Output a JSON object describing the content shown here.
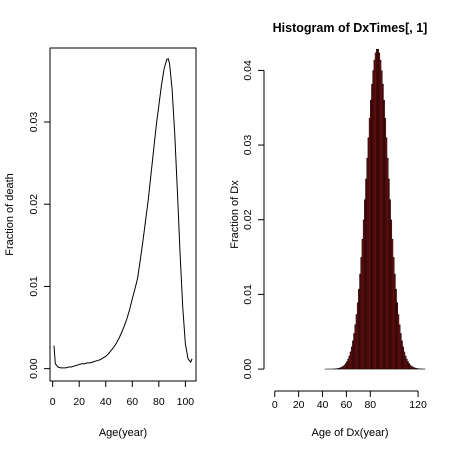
{
  "chart_data": [
    {
      "type": "line",
      "title": "",
      "xlabel": "Age(year)",
      "ylabel": "Fraction of death",
      "xlim": [
        -2,
        108
      ],
      "ylim": [
        -0.0015,
        0.039
      ],
      "xticks": [
        0,
        20,
        40,
        60,
        80,
        100
      ],
      "yticks": [
        0.0,
        0.01,
        0.02,
        0.03
      ],
      "ytick_labels": [
        "0.00",
        "0.01",
        "0.02",
        "0.03"
      ],
      "grid": false,
      "series": [
        {
          "color": "#000000",
          "x": [
            1,
            2,
            4,
            6,
            8,
            10,
            12,
            14,
            16,
            18,
            20,
            22,
            24,
            26,
            28,
            30,
            32,
            34,
            36,
            38,
            40,
            42,
            44,
            46,
            48,
            50,
            52,
            54,
            56,
            58,
            60,
            62,
            64,
            66,
            68,
            70,
            72,
            74,
            76,
            78,
            80,
            82,
            84,
            86,
            87,
            88,
            90,
            92,
            94,
            96,
            98,
            100,
            102,
            104,
            105
          ],
          "y": [
            0.0028,
            0.0006,
            0.0002,
            0.0001,
            0.0001,
            0.0001,
            0.0002,
            0.0002,
            0.0003,
            0.0004,
            0.0005,
            0.0006,
            0.0006,
            0.0007,
            0.0007,
            0.0008,
            0.0009,
            0.001,
            0.0011,
            0.0013,
            0.0015,
            0.0018,
            0.0022,
            0.0026,
            0.0031,
            0.0037,
            0.0044,
            0.0052,
            0.0061,
            0.0072,
            0.0085,
            0.0097,
            0.011,
            0.0132,
            0.0155,
            0.018,
            0.0205,
            0.0235,
            0.0265,
            0.0295,
            0.032,
            0.0345,
            0.0365,
            0.0376,
            0.0377,
            0.0372,
            0.034,
            0.0285,
            0.0215,
            0.014,
            0.0075,
            0.003,
            0.0012,
            0.0008,
            0.0012
          ]
        }
      ]
    },
    {
      "type": "bar",
      "title": "Histogram of DxTimes[, 1]",
      "xlabel": "Age of Dx(year)",
      "ylabel": "Fraction of Dx",
      "xlim": [
        -4,
        130
      ],
      "ylim": [
        -0.0016,
        0.043
      ],
      "xticks": [
        0,
        20,
        40,
        60,
        80,
        120
      ],
      "yticks": [
        0.0,
        0.01,
        0.02,
        0.03,
        0.04
      ],
      "ytick_labels": [
        "0.00",
        "0.01",
        "0.02",
        "0.03",
        "0.04"
      ],
      "bin_width": 1,
      "bin_start": 0,
      "bin_end": 126,
      "bar_color": "#8B1414",
      "mean": 86,
      "sd": 9.3,
      "grid": false
    }
  ]
}
